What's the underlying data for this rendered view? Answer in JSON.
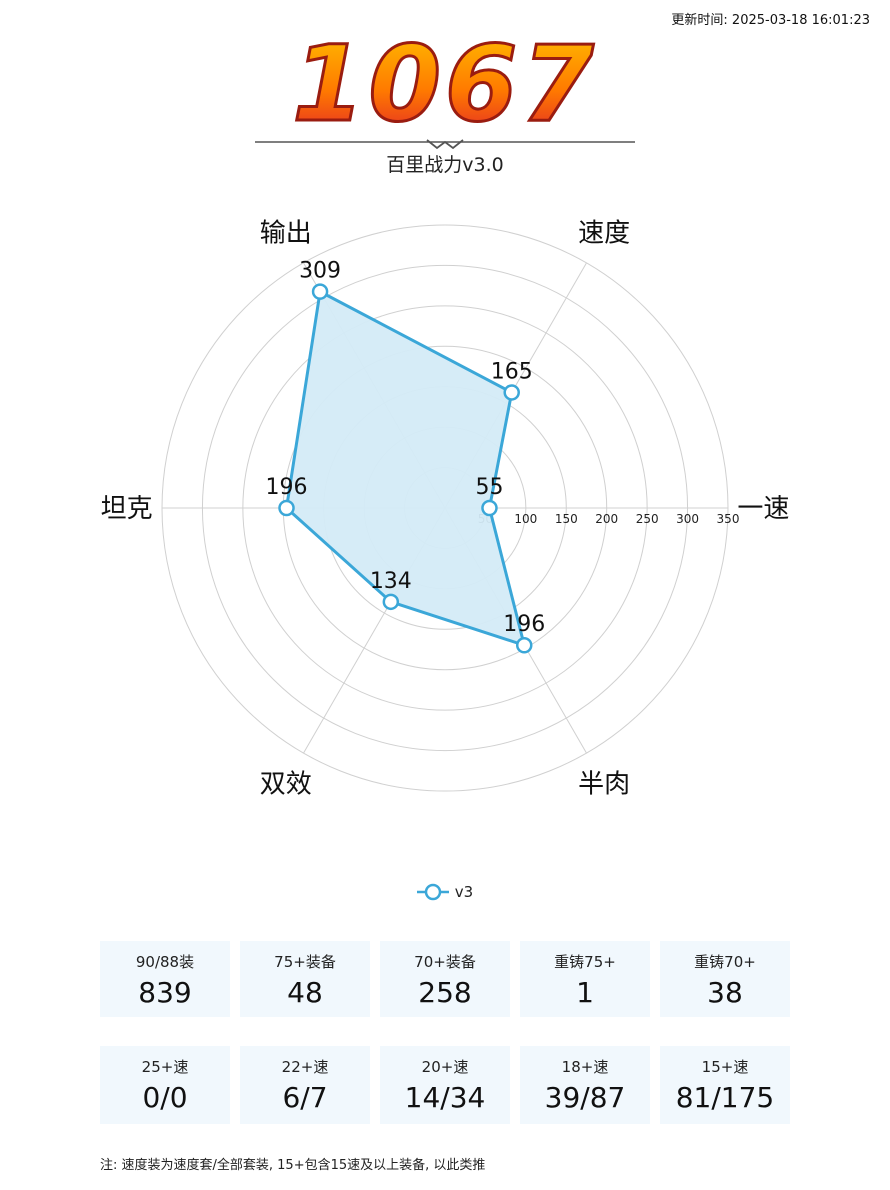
{
  "header": {
    "update_time": "更新时间: 2025-03-18 16:01:23",
    "score": "1067",
    "score_title": "百里战力v3.0"
  },
  "colors": {
    "series": "#3ba7d8",
    "fill": "#d4ebf7",
    "grid": "#d0d0d0",
    "card_bg": "#f1f8fd",
    "score_top": "#ffb000",
    "score_bottom": "#e0202a"
  },
  "chart_data": {
    "type": "radar",
    "axes": [
      "速度",
      "一速",
      "半肉",
      "双效",
      "坦克",
      "输出"
    ],
    "rings": [
      50,
      100,
      150,
      200,
      250,
      300,
      350
    ],
    "range": [
      0,
      350
    ],
    "grid": true,
    "legend_position": "bottom",
    "series": [
      {
        "name": "v3",
        "values": [
          165,
          55,
          196,
          134,
          196,
          309
        ]
      }
    ]
  },
  "stats_row1": [
    {
      "label": "90/88装",
      "value": "839"
    },
    {
      "label": "75+装备",
      "value": "48"
    },
    {
      "label": "70+装备",
      "value": "258"
    },
    {
      "label": "重铸75+",
      "value": "1"
    },
    {
      "label": "重铸70+",
      "value": "38"
    }
  ],
  "stats_row2": [
    {
      "label": "25+速",
      "value": "0/0"
    },
    {
      "label": "22+速",
      "value": "6/7"
    },
    {
      "label": "20+速",
      "value": "14/34"
    },
    {
      "label": "18+速",
      "value": "39/87"
    },
    {
      "label": "15+速",
      "value": "81/175"
    }
  ],
  "note": "注: 速度装为速度套/全部套装, 15+包含15速及以上装备, 以此类推"
}
